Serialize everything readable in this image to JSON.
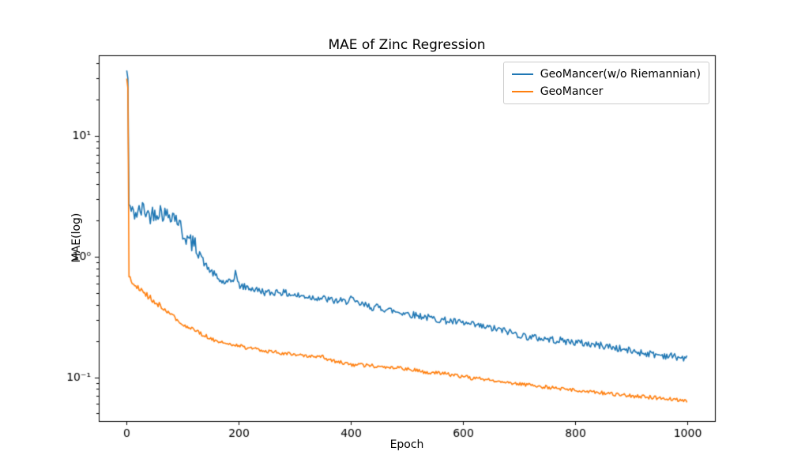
{
  "figure": {
    "background": "#ffffff",
    "text_color": "#000000",
    "spine_color": "#000000"
  },
  "chart_data": {
    "type": "line",
    "title": "MAE of Zinc Regression",
    "xlabel": "Epoch",
    "ylabel": "MAE(log)",
    "x_ticks": [
      0,
      200,
      400,
      600,
      800,
      1000
    ],
    "xlim": [
      -50,
      1050
    ],
    "y_scale": "log",
    "ylim": [
      0.0433,
      46.8
    ],
    "y_ticks": [
      {
        "value": 10,
        "label": "10¹"
      },
      {
        "value": 1,
        "label": "10⁰"
      },
      {
        "value": 0.1,
        "label": "10⁻¹"
      }
    ],
    "grid": false,
    "legend_position": "upper right",
    "series": [
      {
        "name": "GeoMancer(w/o Riemannian)",
        "color": "#1f77b4",
        "noise_decades": 0.03,
        "early_noise_mult": 2.5,
        "early_until": 130,
        "points": [
          [
            0,
            35
          ],
          [
            2,
            30
          ],
          [
            3,
            10
          ],
          [
            4,
            2.7
          ],
          [
            10,
            2.3
          ],
          [
            20,
            2.3
          ],
          [
            30,
            2.5
          ],
          [
            40,
            2.2
          ],
          [
            50,
            2.35
          ],
          [
            60,
            2.4
          ],
          [
            70,
            2.2
          ],
          [
            80,
            2.3
          ],
          [
            90,
            2.05
          ],
          [
            95,
            1.8
          ],
          [
            100,
            1.55
          ],
          [
            105,
            1.5
          ],
          [
            110,
            1.35
          ],
          [
            115,
            1.3
          ],
          [
            120,
            1.25
          ],
          [
            125,
            1.2
          ],
          [
            130,
            1.12
          ],
          [
            135,
            0.95
          ],
          [
            140,
            0.85
          ],
          [
            145,
            0.8
          ],
          [
            150,
            0.76
          ],
          [
            155,
            0.72
          ],
          [
            160,
            0.68
          ],
          [
            165,
            0.64
          ],
          [
            170,
            0.62
          ],
          [
            180,
            0.6
          ],
          [
            190,
            0.64
          ],
          [
            195,
            0.78
          ],
          [
            198,
            0.6
          ],
          [
            200,
            0.58
          ],
          [
            210,
            0.56
          ],
          [
            220,
            0.55
          ],
          [
            230,
            0.53
          ],
          [
            240,
            0.52
          ],
          [
            250,
            0.5
          ],
          [
            260,
            0.5
          ],
          [
            270,
            0.52
          ],
          [
            280,
            0.5
          ],
          [
            290,
            0.49
          ],
          [
            300,
            0.48
          ],
          [
            310,
            0.47
          ],
          [
            320,
            0.47
          ],
          [
            330,
            0.46
          ],
          [
            340,
            0.46
          ],
          [
            350,
            0.45
          ],
          [
            360,
            0.44
          ],
          [
            370,
            0.43
          ],
          [
            380,
            0.43
          ],
          [
            390,
            0.42
          ],
          [
            400,
            0.46
          ],
          [
            405,
            0.42
          ],
          [
            410,
            0.41
          ],
          [
            420,
            0.4
          ],
          [
            430,
            0.39
          ],
          [
            440,
            0.38
          ],
          [
            450,
            0.38
          ],
          [
            460,
            0.37
          ],
          [
            470,
            0.36
          ],
          [
            480,
            0.35
          ],
          [
            490,
            0.345
          ],
          [
            500,
            0.34
          ],
          [
            510,
            0.33
          ],
          [
            520,
            0.325
          ],
          [
            530,
            0.32
          ],
          [
            540,
            0.31
          ],
          [
            550,
            0.305
          ],
          [
            560,
            0.3
          ],
          [
            570,
            0.295
          ],
          [
            580,
            0.29
          ],
          [
            590,
            0.285
          ],
          [
            600,
            0.28
          ],
          [
            620,
            0.27
          ],
          [
            640,
            0.26
          ],
          [
            660,
            0.25
          ],
          [
            680,
            0.24
          ],
          [
            700,
            0.225
          ],
          [
            720,
            0.215
          ],
          [
            740,
            0.21
          ],
          [
            760,
            0.205
          ],
          [
            780,
            0.2
          ],
          [
            800,
            0.195
          ],
          [
            820,
            0.19
          ],
          [
            840,
            0.185
          ],
          [
            860,
            0.18
          ],
          [
            880,
            0.172
          ],
          [
            900,
            0.165
          ],
          [
            920,
            0.16
          ],
          [
            940,
            0.155
          ],
          [
            960,
            0.152
          ],
          [
            980,
            0.148
          ],
          [
            1000,
            0.142
          ]
        ]
      },
      {
        "name": "GeoMancer",
        "color": "#ff7f0e",
        "noise_decades": 0.016,
        "early_noise_mult": 1.6,
        "early_until": 60,
        "points": [
          [
            0,
            30
          ],
          [
            2,
            25
          ],
          [
            3,
            5
          ],
          [
            4,
            0.68
          ],
          [
            10,
            0.6
          ],
          [
            20,
            0.55
          ],
          [
            30,
            0.5
          ],
          [
            40,
            0.46
          ],
          [
            50,
            0.42
          ],
          [
            60,
            0.39
          ],
          [
            70,
            0.36
          ],
          [
            80,
            0.33
          ],
          [
            90,
            0.3
          ],
          [
            100,
            0.275
          ],
          [
            110,
            0.26
          ],
          [
            120,
            0.245
          ],
          [
            130,
            0.232
          ],
          [
            140,
            0.222
          ],
          [
            150,
            0.21
          ],
          [
            160,
            0.2
          ],
          [
            170,
            0.196
          ],
          [
            180,
            0.19
          ],
          [
            190,
            0.186
          ],
          [
            200,
            0.182
          ],
          [
            220,
            0.174
          ],
          [
            240,
            0.168
          ],
          [
            260,
            0.162
          ],
          [
            280,
            0.158
          ],
          [
            300,
            0.154
          ],
          [
            320,
            0.15
          ],
          [
            340,
            0.146
          ],
          [
            350,
            0.148
          ],
          [
            360,
            0.14
          ],
          [
            380,
            0.133
          ],
          [
            400,
            0.128
          ],
          [
            420,
            0.126
          ],
          [
            440,
            0.124
          ],
          [
            460,
            0.122
          ],
          [
            480,
            0.12
          ],
          [
            500,
            0.117
          ],
          [
            520,
            0.113
          ],
          [
            540,
            0.11
          ],
          [
            560,
            0.108
          ],
          [
            580,
            0.105
          ],
          [
            600,
            0.101
          ],
          [
            620,
            0.098
          ],
          [
            640,
            0.096
          ],
          [
            660,
            0.093
          ],
          [
            680,
            0.09
          ],
          [
            700,
            0.088
          ],
          [
            720,
            0.086
          ],
          [
            740,
            0.084
          ],
          [
            760,
            0.082
          ],
          [
            780,
            0.08
          ],
          [
            800,
            0.078
          ],
          [
            820,
            0.076
          ],
          [
            840,
            0.075
          ],
          [
            860,
            0.073
          ],
          [
            880,
            0.071
          ],
          [
            900,
            0.07
          ],
          [
            920,
            0.069
          ],
          [
            940,
            0.068
          ],
          [
            960,
            0.066
          ],
          [
            980,
            0.065
          ],
          [
            1000,
            0.064
          ]
        ]
      }
    ]
  }
}
